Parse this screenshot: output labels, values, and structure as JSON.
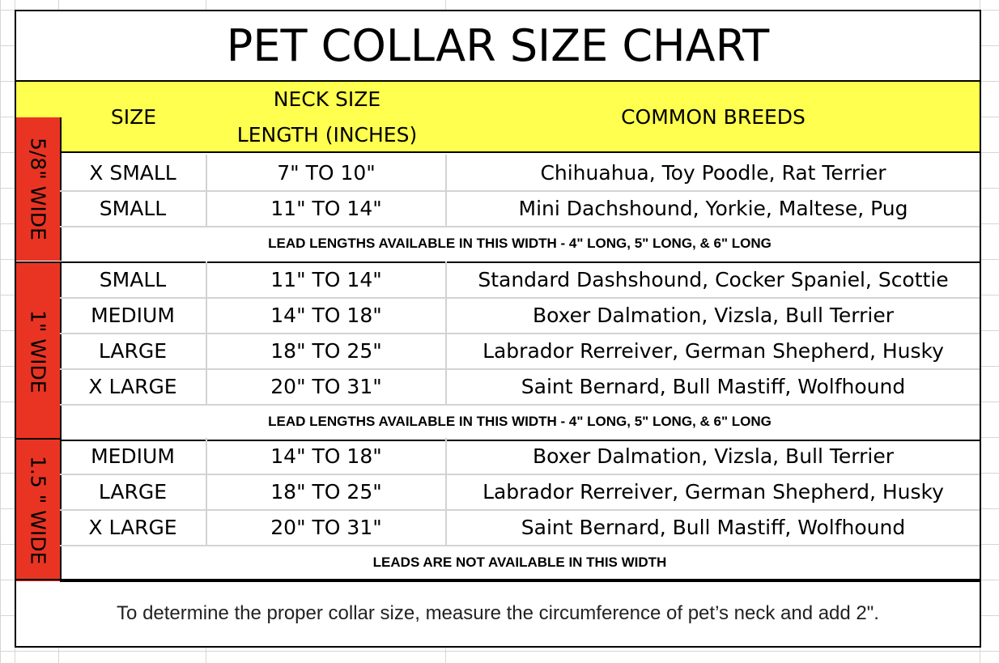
{
  "title": "PET COLLAR SIZE CHART",
  "header": {
    "size": "SIZE",
    "neck_line1": "NECK SIZE",
    "neck_line2": "LENGTH (INCHES)",
    "breeds": "COMMON BREEDS"
  },
  "colors": {
    "header_bg": "#ffff4f",
    "side_bg": "#e93423"
  },
  "sections": [
    {
      "label": "5/8\" WIDE",
      "rows": [
        {
          "size": "X SMALL",
          "neck": "7\" TO 10\"",
          "breeds": "Chihuahua, Toy Poodle, Rat Terrier"
        },
        {
          "size": "SMALL",
          "neck": "11\" TO 14\"",
          "breeds": "Mini Dachshound, Yorkie, Maltese, Pug"
        }
      ],
      "lead": "LEAD LENGTHS AVAILABLE IN THIS WIDTH - 4\" LONG, 5\" LONG, & 6\" LONG"
    },
    {
      "label": "1\" WIDE",
      "rows": [
        {
          "size": "SMALL",
          "neck": "11\" TO 14\"",
          "breeds": "Standard Dashshound, Cocker Spaniel, Scottie"
        },
        {
          "size": "MEDIUM",
          "neck": "14\" TO 18\"",
          "breeds": "Boxer Dalmation, Vizsla, Bull Terrier"
        },
        {
          "size": "LARGE",
          "neck": "18\" TO 25\"",
          "breeds": "Labrador Rerreiver, German Shepherd, Husky"
        },
        {
          "size": "X LARGE",
          "neck": "20\" TO 31\"",
          "breeds": "Saint Bernard, Bull Mastiff, Wolfhound"
        }
      ],
      "lead": "LEAD LENGTHS AVAILABLE IN THIS WIDTH  - 4\" LONG, 5\" LONG, & 6\" LONG"
    },
    {
      "label": "1.5 \" WIDE",
      "rows": [
        {
          "size": "MEDIUM",
          "neck": "14\" TO 18\"",
          "breeds": "Boxer Dalmation, Vizsla, Bull Terrier"
        },
        {
          "size": "LARGE",
          "neck": "18\" TO 25\"",
          "breeds": "Labrador Rerreiver, German Shepherd, Husky"
        },
        {
          "size": "X LARGE",
          "neck": "20\" TO 31\"",
          "breeds": "Saint Bernard, Bull Mastiff, Wolfhound"
        }
      ],
      "lead": "LEADS ARE NOT AVAILABLE IN THIS WIDTH"
    }
  ],
  "footer": "To determine the proper collar size, measure the circumference of pet’s neck and add 2\"."
}
